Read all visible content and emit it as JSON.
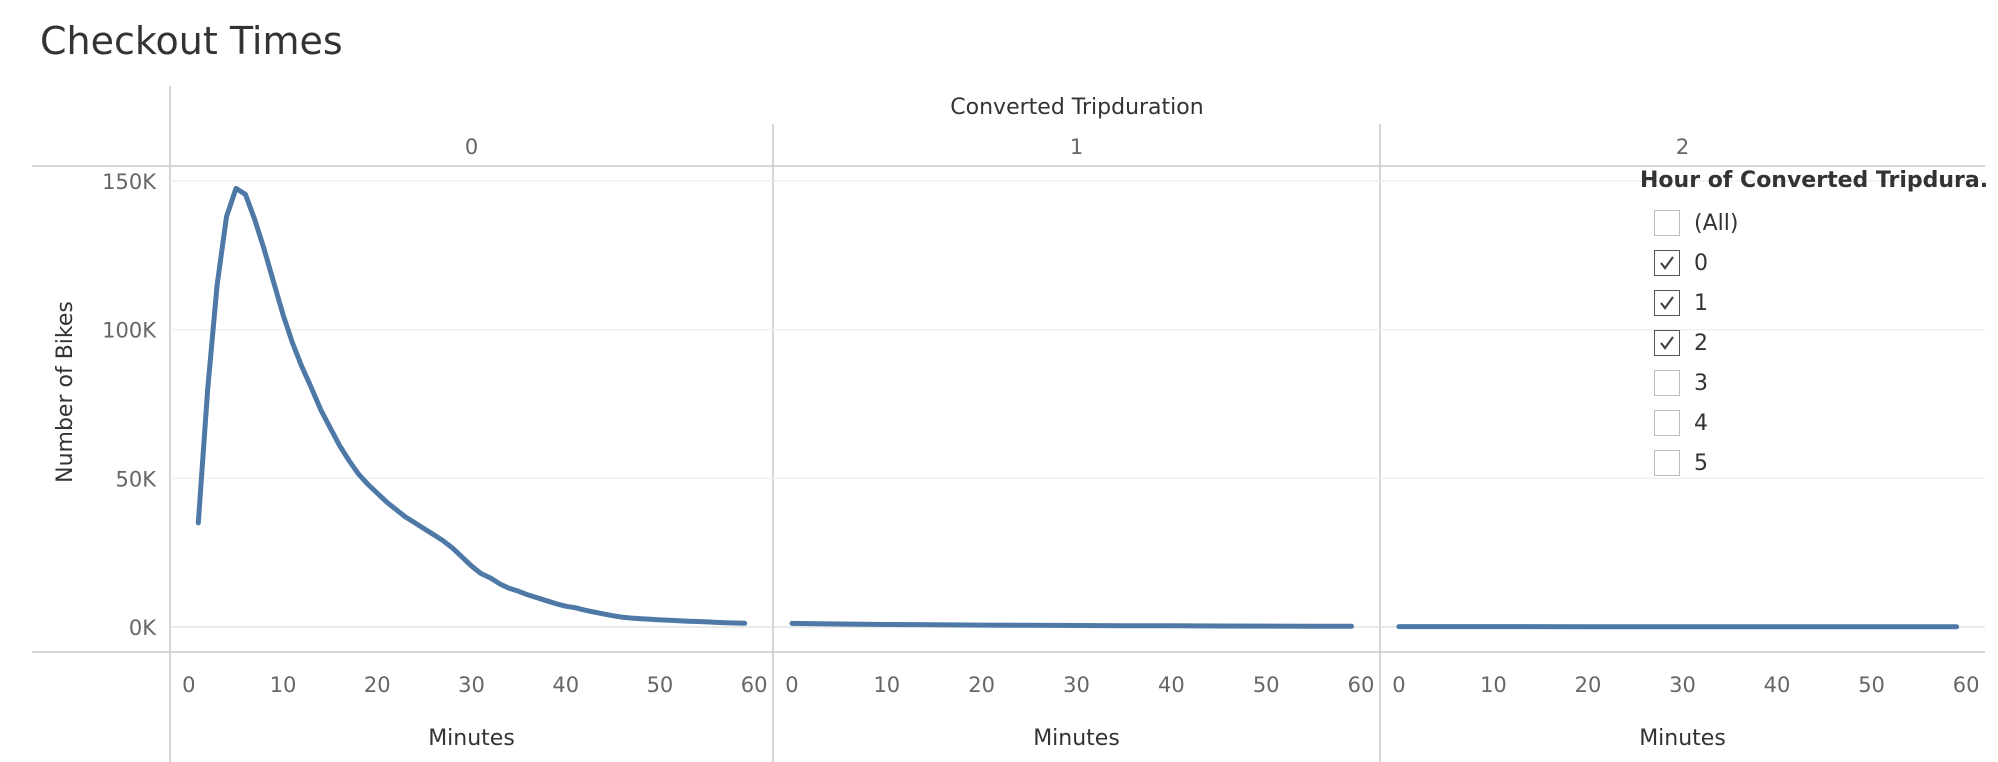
{
  "page_title": "Checkout Times",
  "chart_data": {
    "type": "line",
    "title": "Checkout Times",
    "column_header": "Converted Tripduration",
    "xlabel": "Minutes",
    "ylabel": "Number of Bikes",
    "y_tick_labels": [
      "0K",
      "50K",
      "100K",
      "150K"
    ],
    "y_ticks": [
      0,
      50000,
      100000,
      150000
    ],
    "ylim": [
      -7000,
      155000
    ],
    "x_ticks": [
      0,
      10,
      20,
      30,
      40,
      50,
      60
    ],
    "xlim": [
      -2,
      62
    ],
    "grid": true,
    "series_color": "#4e79a7",
    "panels": [
      {
        "label": "0",
        "x": [
          1,
          2,
          3,
          4,
          5,
          6,
          7,
          8,
          9,
          10,
          11,
          12,
          13,
          14,
          15,
          16,
          17,
          18,
          19,
          20,
          21,
          22,
          23,
          24,
          25,
          26,
          27,
          28,
          29,
          30,
          31,
          32,
          33,
          34,
          35,
          36,
          37,
          38,
          39,
          40,
          41,
          42,
          43,
          44,
          45,
          46,
          47,
          48,
          49,
          50,
          51,
          52,
          53,
          54,
          55,
          56,
          57,
          58,
          59
        ],
        "values": [
          35000,
          80000,
          115000,
          138000,
          147500,
          145500,
          137000,
          127000,
          116000,
          105000,
          95500,
          87500,
          80500,
          73000,
          67000,
          61000,
          56000,
          51500,
          48000,
          45000,
          42000,
          39500,
          37000,
          35000,
          33000,
          31000,
          29000,
          26500,
          23500,
          20500,
          18000,
          16500,
          14500,
          13000,
          12000,
          10800,
          9800,
          8800,
          7800,
          7000,
          6500,
          5700,
          5000,
          4400,
          3800,
          3300,
          3000,
          2800,
          2600,
          2400,
          2250,
          2100,
          1950,
          1850,
          1700,
          1550,
          1450,
          1350,
          1250
        ]
      },
      {
        "label": "1",
        "x": [
          0,
          5,
          10,
          15,
          20,
          25,
          30,
          35,
          40,
          45,
          50,
          55,
          59
        ],
        "values": [
          1200,
          1000,
          850,
          750,
          650,
          570,
          500,
          440,
          390,
          340,
          300,
          270,
          250
        ]
      },
      {
        "label": "2",
        "x": [
          0,
          10,
          20,
          30,
          40,
          50,
          59
        ],
        "values": [
          150,
          130,
          110,
          100,
          90,
          80,
          75
        ]
      }
    ]
  },
  "filter": {
    "title": "Hour of Converted Tripdura...",
    "items": [
      {
        "label": "(All)",
        "checked": false
      },
      {
        "label": "0",
        "checked": true
      },
      {
        "label": "1",
        "checked": true
      },
      {
        "label": "2",
        "checked": true
      },
      {
        "label": "3",
        "checked": false
      },
      {
        "label": "4",
        "checked": false
      },
      {
        "label": "5",
        "checked": false
      }
    ]
  }
}
